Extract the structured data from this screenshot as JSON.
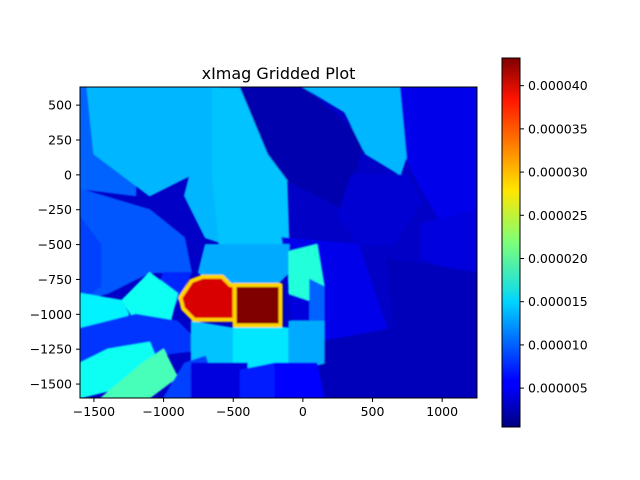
{
  "chart_data": {
    "type": "heatmap",
    "title": "xImag Gridded Plot",
    "xlabel": "",
    "ylabel": "",
    "xlim": [
      -1600,
      1250
    ],
    "ylim": [
      -1600,
      630
    ],
    "x_ticks": [
      -1500,
      -1000,
      -500,
      0,
      500,
      1000
    ],
    "x_tick_labels": [
      "−1500",
      "−1000",
      "−500",
      "0",
      "500",
      "1000"
    ],
    "y_ticks": [
      500,
      250,
      0,
      -250,
      -500,
      -750,
      -1000,
      -1250,
      -1500
    ],
    "y_tick_labels": [
      "500",
      "250",
      "0",
      "−250",
      "−500",
      "−750",
      "−1000",
      "−1250",
      "−1500"
    ],
    "colormap": "jet",
    "colorbar": {
      "range": [
        5e-07,
        4.32e-05
      ],
      "ticks": [
        5e-06,
        1e-05,
        1.5e-05,
        2e-05,
        2.5e-05,
        3e-05,
        3.5e-05,
        4e-05
      ],
      "tick_labels": [
        "0.000005",
        "0.000010",
        "0.000015",
        "0.000020",
        "0.000025",
        "0.000030",
        "0.000035",
        "0.000040"
      ]
    },
    "regions": [
      {
        "level": 1e-05,
        "polygon": [
          [
            -1600,
            630
          ],
          [
            -1200,
            630
          ],
          [
            -1200,
            -150
          ],
          [
            -1600,
            -100
          ]
        ]
      },
      {
        "level": 1.35e-05,
        "polygon": [
          [
            -1550,
            630
          ],
          [
            -600,
            630
          ],
          [
            -600,
            100
          ],
          [
            -1100,
            -150
          ],
          [
            -1500,
            150
          ]
        ]
      },
      {
        "level": 9.5e-06,
        "polygon": [
          [
            -1600,
            -100
          ],
          [
            -1100,
            -250
          ],
          [
            -850,
            -450
          ],
          [
            -800,
            -700
          ],
          [
            -1100,
            -700
          ],
          [
            -1400,
            -850
          ],
          [
            -1600,
            -900
          ]
        ]
      },
      {
        "level": 8.5e-06,
        "polygon": [
          [
            -1600,
            -300
          ],
          [
            -1450,
            -500
          ],
          [
            -1450,
            -800
          ],
          [
            -1600,
            -900
          ]
        ]
      },
      {
        "level": 7.5e-06,
        "polygon": [
          [
            -1000,
            -700
          ],
          [
            -800,
            -700
          ],
          [
            -950,
            -1000
          ],
          [
            -1100,
            -1000
          ]
        ]
      },
      {
        "level": 1.35e-05,
        "polygon": [
          [
            -650,
            630
          ],
          [
            -600,
            630
          ],
          [
            -550,
            -500
          ],
          [
            -700,
            -450
          ],
          [
            -800,
            -250
          ],
          [
            -850,
            -150
          ]
        ]
      },
      {
        "level": 1.4e-05,
        "polygon": [
          [
            -650,
            630
          ],
          [
            -120,
            630
          ],
          [
            -120,
            100
          ],
          [
            -100,
            -500
          ],
          [
            -600,
            -500
          ],
          [
            -650,
            0
          ]
        ]
      },
      {
        "level": 2.5e-06,
        "polygon": [
          [
            -600,
            630
          ],
          [
            0,
            630
          ],
          [
            450,
            250
          ],
          [
            400,
            100
          ],
          [
            300,
            -250
          ],
          [
            -100,
            -50
          ],
          [
            -250,
            150
          ],
          [
            -450,
            630
          ]
        ]
      },
      {
        "level": 1.35e-05,
        "polygon": [
          [
            0,
            630
          ],
          [
            700,
            630
          ],
          [
            800,
            300
          ],
          [
            700,
            0
          ],
          [
            450,
            150
          ],
          [
            300,
            450
          ]
        ]
      },
      {
        "level": 5e-06,
        "polygon": [
          [
            700,
            630
          ],
          [
            1250,
            630
          ],
          [
            1250,
            -300
          ],
          [
            1000,
            -350
          ],
          [
            850,
            -100
          ],
          [
            750,
            100
          ]
        ]
      },
      {
        "level": 4e-06,
        "polygon": [
          [
            350,
            0
          ],
          [
            750,
            0
          ],
          [
            850,
            -200
          ],
          [
            650,
            -500
          ],
          [
            400,
            -500
          ],
          [
            250,
            -300
          ]
        ]
      },
      {
        "level": 4.5e-06,
        "polygon": [
          [
            850,
            -350
          ],
          [
            1250,
            -250
          ],
          [
            1250,
            -750
          ],
          [
            850,
            -600
          ]
        ]
      },
      {
        "level": 3e-06,
        "polygon": [
          [
            600,
            -600
          ],
          [
            1250,
            -700
          ],
          [
            1250,
            -1600
          ],
          [
            700,
            -1600
          ],
          [
            650,
            -1100
          ]
        ]
      },
      {
        "level": 5e-06,
        "polygon": [
          [
            -150,
            -450
          ],
          [
            400,
            -500
          ],
          [
            500,
            -800
          ],
          [
            600,
            -1100
          ],
          [
            200,
            -1300
          ],
          [
            0,
            -1300
          ],
          [
            -100,
            -800
          ]
        ]
      },
      {
        "level": 4.5e-06,
        "polygon": [
          [
            -100,
            -800
          ],
          [
            100,
            -800
          ],
          [
            150,
            -1300
          ],
          [
            -50,
            -1350
          ]
        ]
      },
      {
        "level": 3e-06,
        "polygon": [
          [
            100,
            -1200
          ],
          [
            650,
            -1100
          ],
          [
            700,
            -1600
          ],
          [
            100,
            -1600
          ]
        ]
      },
      {
        "level": 1.3e-05,
        "polygon": [
          [
            -700,
            -500
          ],
          [
            -100,
            -500
          ],
          [
            -100,
            -700
          ],
          [
            -200,
            -800
          ],
          [
            -550,
            -850
          ],
          [
            -750,
            -700
          ]
        ]
      },
      {
        "level": 1.8e-05,
        "polygon": [
          [
            -100,
            -550
          ],
          [
            100,
            -500
          ],
          [
            150,
            -800
          ],
          [
            50,
            -900
          ],
          [
            -100,
            -850
          ]
        ]
      },
      {
        "level": 1e-05,
        "polygon": [
          [
            50,
            -750
          ],
          [
            150,
            -800
          ],
          [
            150,
            -1200
          ],
          [
            50,
            -1250
          ]
        ]
      },
      {
        "level": 1.7e-05,
        "polygon": [
          [
            -1100,
            -700
          ],
          [
            -900,
            -850
          ],
          [
            -950,
            -1050
          ],
          [
            -1200,
            -1050
          ],
          [
            -1300,
            -900
          ]
        ]
      },
      {
        "level": 1.6e-05,
        "polygon": [
          [
            -1600,
            -850
          ],
          [
            -1300,
            -900
          ],
          [
            -1250,
            -1000
          ],
          [
            -1500,
            -1200
          ],
          [
            -1600,
            -1250
          ]
        ]
      },
      {
        "level": 8e-06,
        "polygon": [
          [
            -1600,
            -1100
          ],
          [
            -1200,
            -1000
          ],
          [
            -900,
            -1050
          ],
          [
            -700,
            -1250
          ],
          [
            -1100,
            -1300
          ],
          [
            -1600,
            -1350
          ]
        ]
      },
      {
        "level": 1.4e-05,
        "polygon": [
          [
            -800,
            -1050
          ],
          [
            -500,
            -1100
          ],
          [
            -450,
            -1400
          ],
          [
            -800,
            -1400
          ]
        ]
      },
      {
        "level": 1.55e-05,
        "polygon": [
          [
            -500,
            -1050
          ],
          [
            -100,
            -1100
          ],
          [
            -100,
            -1400
          ],
          [
            -500,
            -1400
          ]
        ]
      },
      {
        "level": 1.3e-05,
        "polygon": [
          [
            -100,
            -1050
          ],
          [
            150,
            -1050
          ],
          [
            150,
            -1350
          ],
          [
            -100,
            -1400
          ]
        ]
      },
      {
        "level": 1.7e-05,
        "polygon": [
          [
            -1600,
            -1350
          ],
          [
            -1400,
            -1250
          ],
          [
            -1100,
            -1200
          ],
          [
            -1000,
            -1450
          ],
          [
            -1600,
            -1600
          ]
        ]
      },
      {
        "level": 1.95e-05,
        "polygon": [
          [
            -1450,
            -1600
          ],
          [
            -1150,
            -1350
          ],
          [
            -1000,
            -1250
          ],
          [
            -900,
            -1450
          ],
          [
            -1100,
            -1600
          ]
        ]
      },
      {
        "level": 8.5e-06,
        "polygon": [
          [
            -1000,
            -1600
          ],
          [
            -850,
            -1350
          ],
          [
            -700,
            -1300
          ],
          [
            -600,
            -1600
          ]
        ]
      },
      {
        "level": 4.5e-06,
        "polygon": [
          [
            -800,
            -1350
          ],
          [
            -400,
            -1350
          ],
          [
            -400,
            -1600
          ],
          [
            -800,
            -1600
          ]
        ]
      },
      {
        "level": 7e-06,
        "polygon": [
          [
            -450,
            -1400
          ],
          [
            -200,
            -1350
          ],
          [
            -200,
            -1600
          ],
          [
            -450,
            -1600
          ]
        ]
      },
      {
        "level": 6e-06,
        "polygon": [
          [
            -200,
            -1350
          ],
          [
            100,
            -1350
          ],
          [
            150,
            -1600
          ],
          [
            -200,
            -1600
          ]
        ]
      },
      {
        "level": 3.95e-05,
        "polygon": [
          [
            -880,
            -880
          ],
          [
            -800,
            -760
          ],
          [
            -720,
            -730
          ],
          [
            -580,
            -730
          ],
          [
            -520,
            -790
          ],
          [
            -440,
            -800
          ],
          [
            -450,
            -1040
          ],
          [
            -560,
            -1040
          ],
          [
            -780,
            -1040
          ],
          [
            -860,
            -960
          ]
        ]
      },
      {
        "level": 4.32e-05,
        "polygon": [
          [
            -490,
            -790
          ],
          [
            -160,
            -790
          ],
          [
            -160,
            -1080
          ],
          [
            -490,
            -1080
          ]
        ]
      }
    ]
  }
}
